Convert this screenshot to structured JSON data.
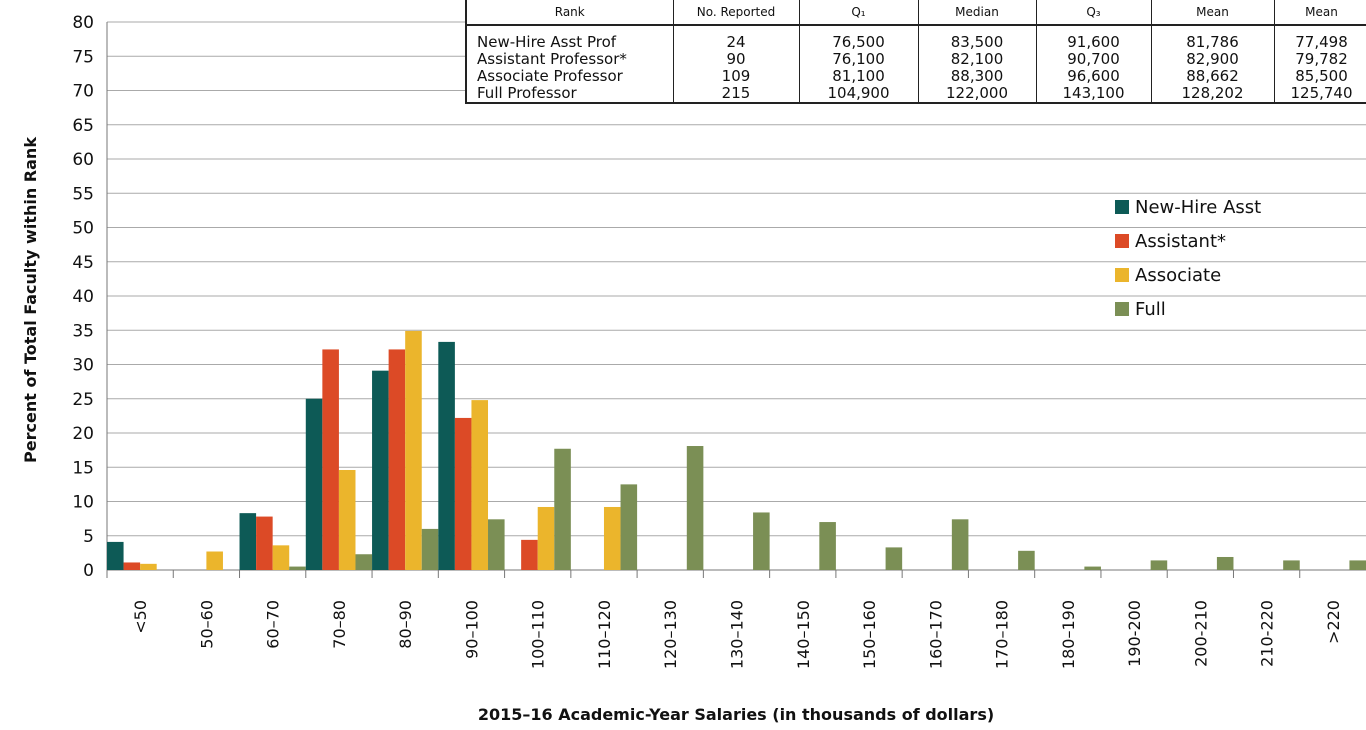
{
  "chart_data": {
    "type": "bar",
    "xlabel": "2015–16 Academic-Year Salaries (in thousands of dollars)",
    "ylabel": "Percent of Total Faculty within Rank",
    "categories": [
      "<50",
      "50–60",
      "60–70",
      "70–80",
      "80–90",
      "90–100",
      "100–110",
      "110–120",
      "120–130",
      "130–140",
      "140–150",
      "150–160",
      "160–170",
      "170–180",
      "180–190",
      "190-200",
      "200-210",
      "210-220",
      ">220"
    ],
    "series": [
      {
        "name": "New-Hire Asst",
        "color": "#0d5a56",
        "values": [
          4.1,
          0,
          8.3,
          25,
          29.1,
          33.3,
          0,
          0,
          0,
          0,
          0,
          0,
          0,
          0,
          0,
          0,
          0,
          0,
          0
        ]
      },
      {
        "name": "Assistant*",
        "color": "#dc4a26",
        "values": [
          1.1,
          0,
          7.8,
          32.2,
          32.2,
          22.2,
          4.4,
          0,
          0,
          0,
          0,
          0,
          0,
          0,
          0,
          0,
          0,
          0,
          0
        ]
      },
      {
        "name": "Associate",
        "color": "#ebb52c",
        "values": [
          0.9,
          2.7,
          3.6,
          14.6,
          34.9,
          24.8,
          9.2,
          9.2,
          0,
          0,
          0,
          0,
          0,
          0,
          0,
          0,
          0,
          0,
          0
        ]
      },
      {
        "name": "Full",
        "color": "#7b8f55",
        "values": [
          0,
          0,
          0.5,
          2.3,
          6.0,
          7.4,
          17.7,
          12.5,
          18.1,
          8.4,
          7.0,
          3.3,
          7.4,
          2.8,
          0.5,
          1.4,
          1.9,
          1.4,
          1.4
        ]
      }
    ],
    "ylim": [
      0,
      80
    ],
    "yticks": [
      0,
      5,
      10,
      15,
      20,
      25,
      30,
      35,
      40,
      45,
      50,
      55,
      60,
      65,
      70,
      75,
      80
    ],
    "grid": true
  },
  "table": {
    "header": [
      "Rank",
      "No. Reported",
      "Q₁",
      "Median",
      "Q₃",
      "Mean",
      "Mean"
    ],
    "rows": [
      [
        "New-Hire Asst Prof",
        "24",
        "76,500",
        "83,500",
        "91,600",
        "81,786",
        "77,498"
      ],
      [
        "Assistant Professor*",
        "90",
        "76,100",
        "82,100",
        "90,700",
        "82,900",
        "79,782"
      ],
      [
        "Associate Professor",
        "109",
        "81,100",
        "88,300",
        "96,600",
        "88,662",
        "85,500"
      ],
      [
        "Full Professor",
        "215",
        "104,900",
        "122,000",
        "143,100",
        "128,202",
        "125,740"
      ]
    ]
  }
}
